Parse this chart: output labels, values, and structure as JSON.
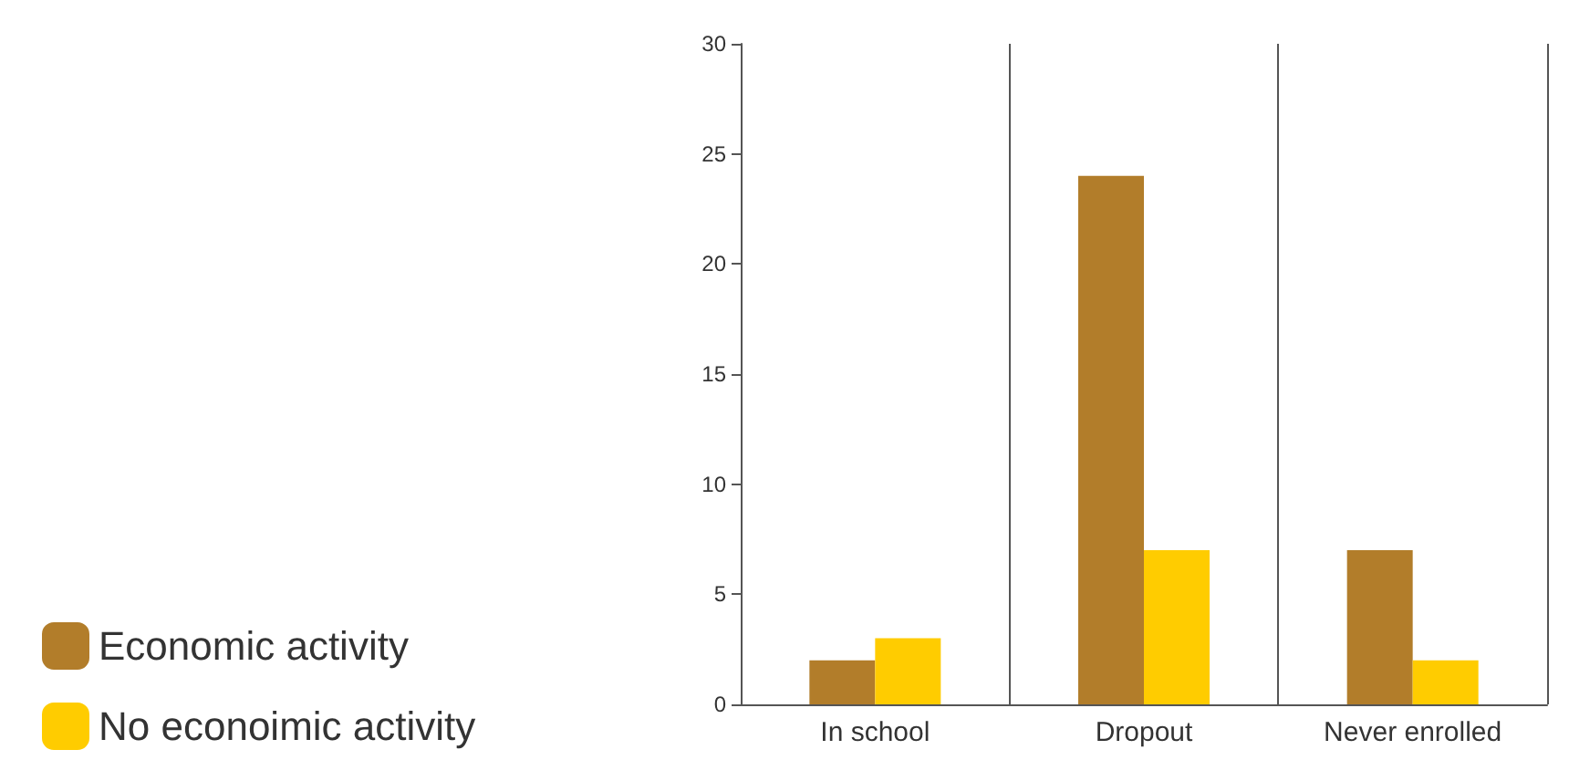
{
  "chart_data": {
    "type": "bar",
    "categories": [
      "In school",
      "Dropout",
      "Never enrolled"
    ],
    "series": [
      {
        "name": "Economic activity",
        "color": "#b27d2a",
        "values": [
          2,
          24,
          7
        ]
      },
      {
        "name": "No econoimic activity",
        "color": "#ffcc00",
        "values": [
          3,
          7,
          2
        ]
      }
    ],
    "ylim": [
      0,
      30
    ],
    "yticks": [
      0,
      5,
      10,
      15,
      20,
      25,
      30
    ],
    "grid": "x",
    "legend": "bottom left"
  }
}
